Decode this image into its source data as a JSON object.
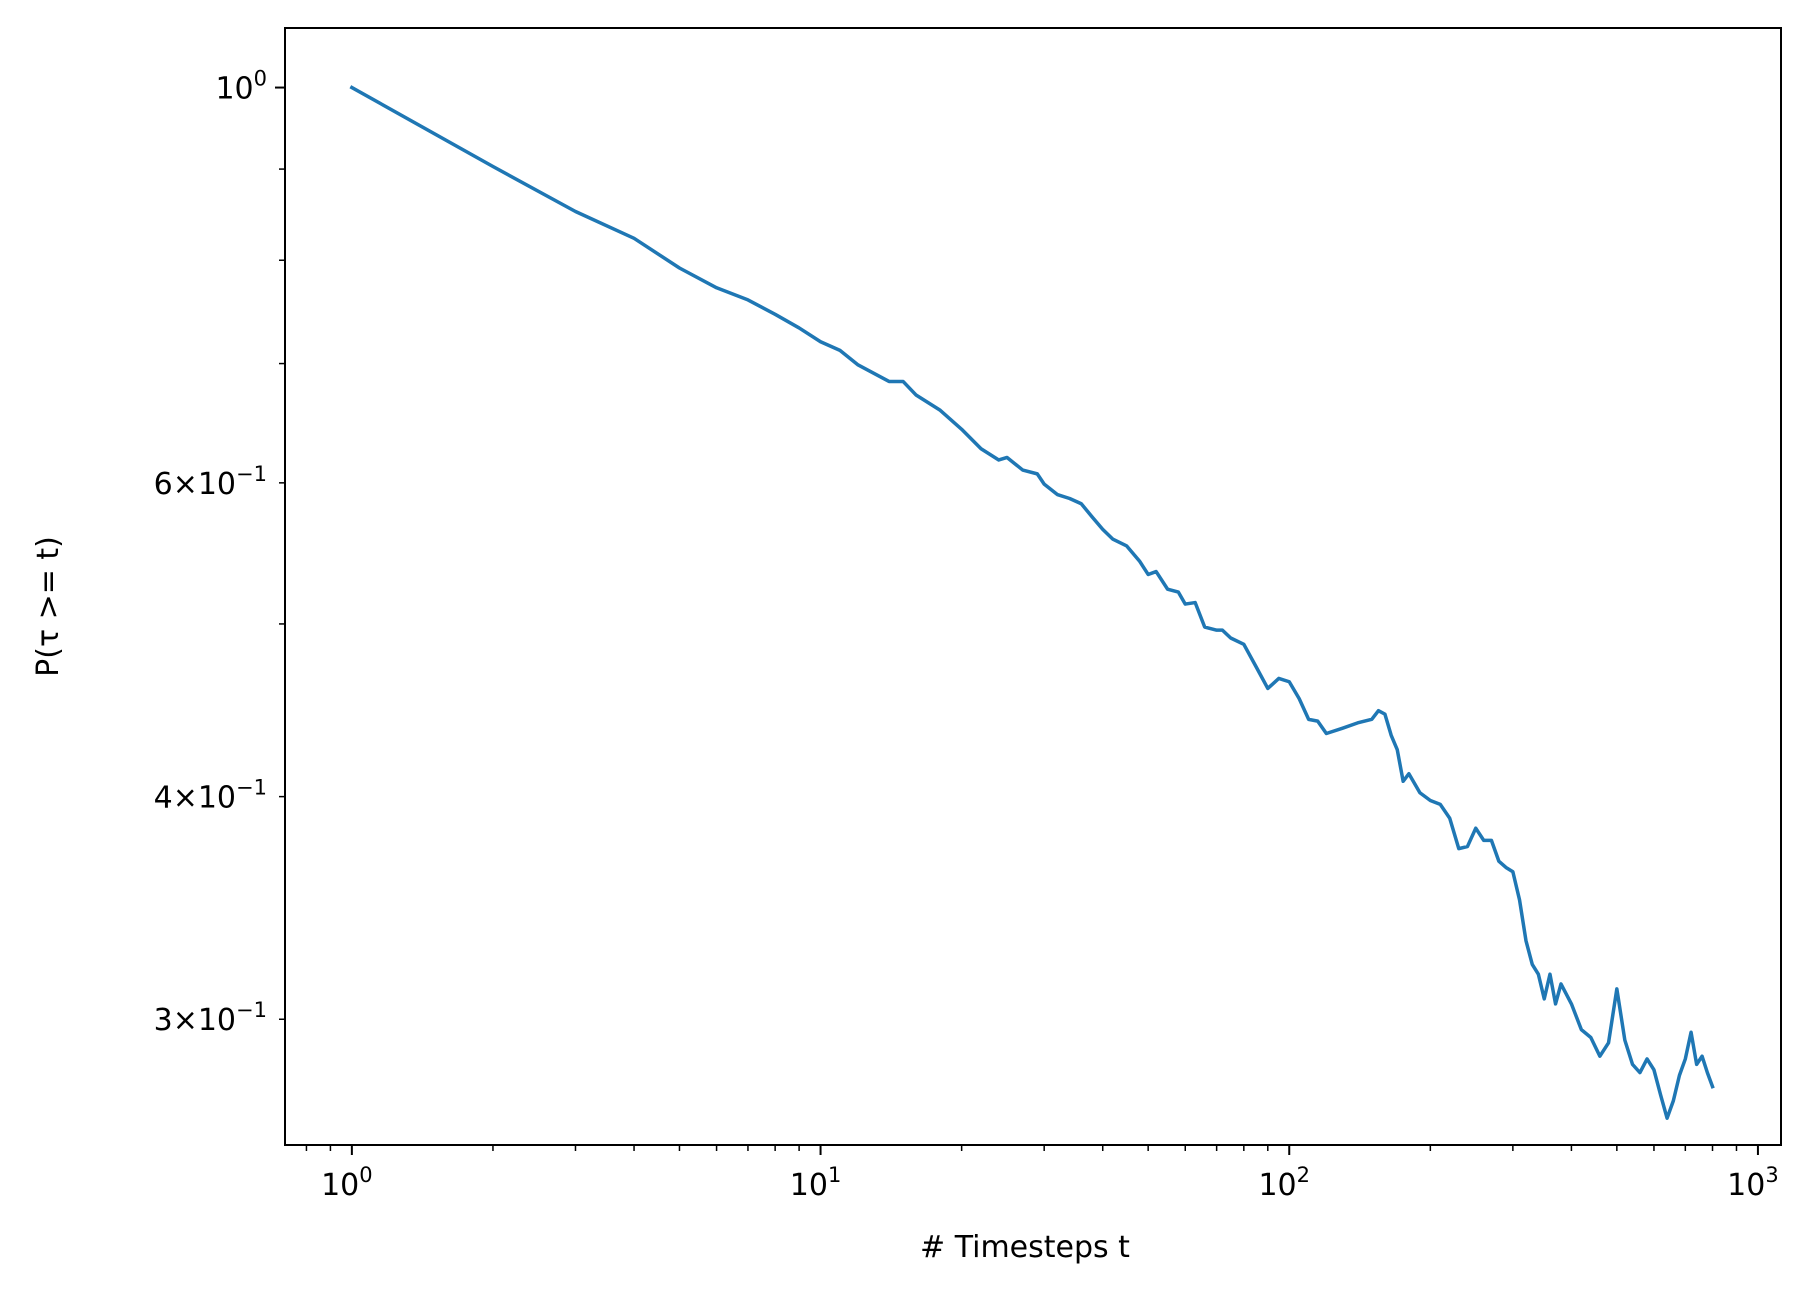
{
  "chart_data": {
    "type": "line",
    "title": "",
    "xlabel": "# Timesteps t",
    "ylabel": "P(τ >= t)",
    "xscale": "log",
    "yscale": "log",
    "xlim": [
      0.72,
      1120
    ],
    "ylim": [
      0.255,
      1.08
    ],
    "grid": false,
    "legend": "none",
    "line_color": "#1f77b4",
    "x_major_ticks": [
      {
        "value": 1,
        "base": "10",
        "exp": "0"
      },
      {
        "value": 10,
        "base": "10",
        "exp": "1"
      },
      {
        "value": 100,
        "base": "10",
        "exp": "2"
      },
      {
        "value": 1000,
        "base": "10",
        "exp": "3"
      }
    ],
    "y_major_ticks": [
      {
        "value": 1.0,
        "mantissa": "",
        "base": "10",
        "exp": "0"
      }
    ],
    "y_minor_labeled_ticks": [
      {
        "value": 0.6,
        "mantissa": "6",
        "base": "10",
        "exp": "−1"
      },
      {
        "value": 0.4,
        "mantissa": "4",
        "base": "10",
        "exp": "−1"
      },
      {
        "value": 0.3,
        "mantissa": "3",
        "base": "10",
        "exp": "−1"
      }
    ],
    "y_minor_unlabeled_ticks": [
      0.9,
      0.8,
      0.7,
      0.5
    ],
    "series": [
      {
        "x": [
          1,
          2,
          3,
          4,
          5,
          6,
          7,
          8,
          9,
          10,
          11,
          12,
          14,
          15,
          16,
          18,
          20,
          22,
          24,
          25,
          27,
          29,
          30,
          32,
          34,
          36,
          38,
          40,
          42,
          45,
          48,
          50,
          52,
          55,
          58,
          60,
          63,
          66,
          70,
          72,
          75,
          80,
          85,
          90,
          95,
          100,
          105,
          110,
          115,
          120,
          130,
          140,
          150,
          155,
          160,
          165,
          170,
          175,
          180,
          190,
          200,
          210,
          220,
          230,
          240,
          250,
          260,
          270,
          280,
          290,
          300,
          310,
          320,
          330,
          340,
          350,
          360,
          370,
          380,
          400,
          420,
          440,
          460,
          480,
          500,
          520,
          540,
          560,
          580,
          600,
          620,
          640,
          660,
          680,
          700,
          720,
          740,
          760,
          780,
          800
        ],
        "y": [
          1.0,
          0.903,
          0.852,
          0.823,
          0.792,
          0.772,
          0.76,
          0.746,
          0.733,
          0.72,
          0.712,
          0.699,
          0.684,
          0.684,
          0.672,
          0.659,
          0.643,
          0.627,
          0.618,
          0.62,
          0.61,
          0.607,
          0.599,
          0.591,
          0.588,
          0.584,
          0.574,
          0.565,
          0.558,
          0.553,
          0.542,
          0.533,
          0.535,
          0.523,
          0.521,
          0.513,
          0.514,
          0.498,
          0.496,
          0.496,
          0.491,
          0.487,
          0.473,
          0.46,
          0.466,
          0.464,
          0.454,
          0.442,
          0.441,
          0.434,
          0.437,
          0.44,
          0.442,
          0.447,
          0.445,
          0.433,
          0.425,
          0.408,
          0.412,
          0.402,
          0.398,
          0.396,
          0.389,
          0.374,
          0.375,
          0.384,
          0.378,
          0.378,
          0.368,
          0.365,
          0.363,
          0.35,
          0.332,
          0.322,
          0.318,
          0.308,
          0.318,
          0.306,
          0.314,
          0.306,
          0.296,
          0.293,
          0.286,
          0.291,
          0.312,
          0.292,
          0.283,
          0.28,
          0.285,
          0.281,
          0.272,
          0.264,
          0.27,
          0.279,
          0.285,
          0.295,
          0.283,
          0.286,
          0.28,
          0.275
        ]
      }
    ]
  }
}
